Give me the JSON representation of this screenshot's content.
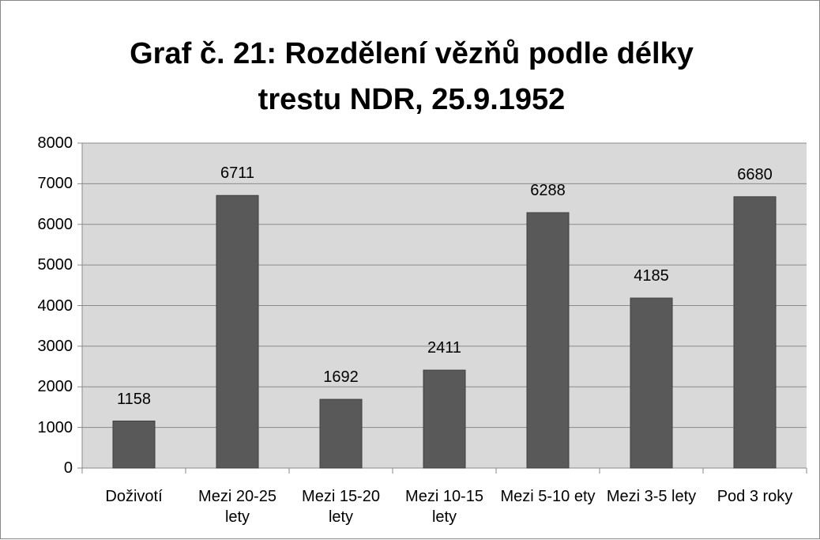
{
  "chart_data": {
    "type": "bar",
    "title": "Graf č. 21: Rozdělení vězňů podle délky trestu NDR, 25.9.1952",
    "categories": [
      "Doživotí",
      "Mezi 20-25 lety",
      "Mezi 15-20 lety",
      "Mezi 10-15 lety",
      "Mezi 5-10 ety",
      "Mezi 3-5 lety",
      "Pod 3 roky"
    ],
    "values": [
      1158,
      6711,
      1692,
      2411,
      6288,
      4185,
      6680
    ],
    "color": "#595959",
    "ylim": [
      0,
      8000
    ],
    "yticks": [
      0,
      1000,
      2000,
      3000,
      4000,
      5000,
      6000,
      7000,
      8000
    ],
    "grid": true
  }
}
